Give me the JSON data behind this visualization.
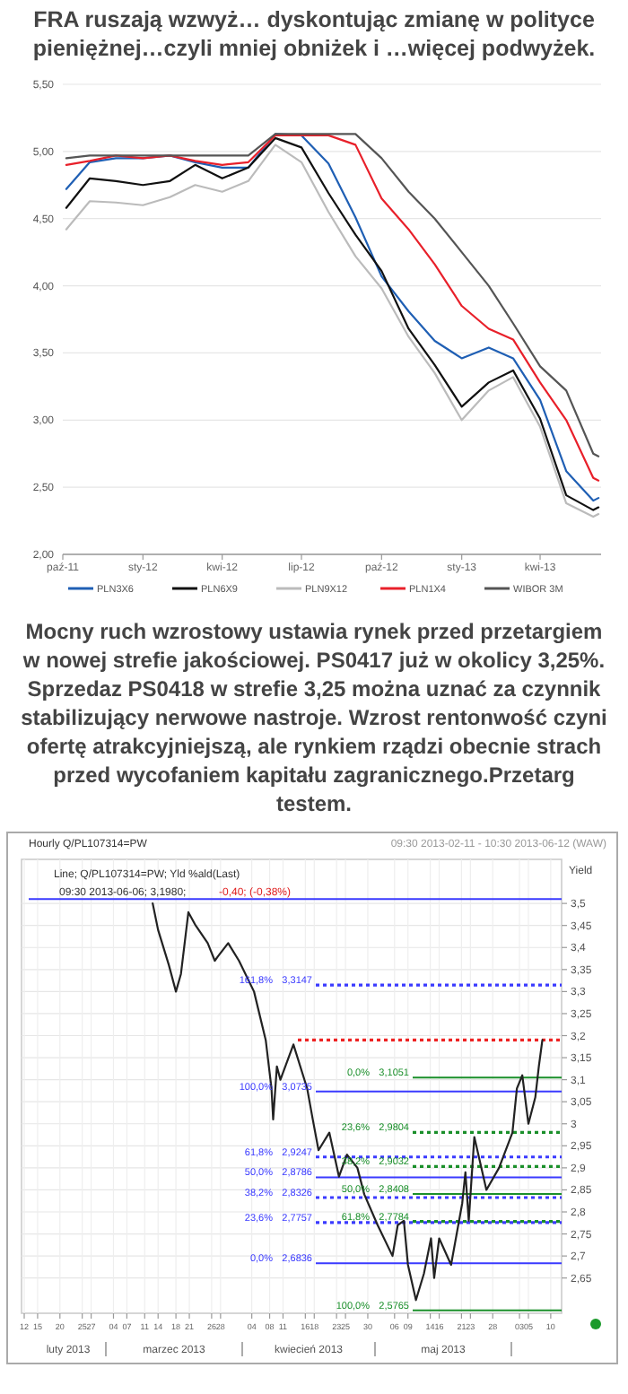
{
  "chart_data": [
    {
      "type": "line",
      "title": "FRA ruszają wzwyż… dyskontując zmianę w polityce pieniężnej…czyli mniej obniżek i …więcej podwyżek.",
      "x": [
        "2011-10-05",
        "2011-11-01",
        "2011-12-01",
        "2012-01-01",
        "2012-02-01",
        "2012-03-01",
        "2012-04-01",
        "2012-05-01",
        "2012-06-01",
        "2012-07-01",
        "2012-08-01",
        "2012-09-01",
        "2012-10-01",
        "2012-11-01",
        "2012-12-01",
        "2013-01-01",
        "2013-02-01",
        "2013-03-01",
        "2013-04-01",
        "2013-05-01",
        "2013-06-01",
        "2013-06-07"
      ],
      "series": [
        {
          "name": "PLN3X6",
          "color": "#1f5fb4",
          "values": [
            4.72,
            4.92,
            4.95,
            4.95,
            4.97,
            4.92,
            4.88,
            4.88,
            5.13,
            5.12,
            4.91,
            4.51,
            4.07,
            3.81,
            3.59,
            3.46,
            3.54,
            3.46,
            3.15,
            2.62,
            2.4,
            2.42
          ]
        },
        {
          "name": "PLN6X9",
          "color": "#111111",
          "values": [
            4.58,
            4.8,
            4.78,
            4.75,
            4.78,
            4.9,
            4.8,
            4.88,
            5.1,
            5.03,
            4.69,
            4.38,
            4.11,
            3.68,
            3.41,
            3.1,
            3.28,
            3.37,
            3.01,
            2.44,
            2.33,
            2.35
          ]
        },
        {
          "name": "PLN9X12",
          "color": "#bbbbbb",
          "values": [
            4.42,
            4.63,
            4.62,
            4.6,
            4.66,
            4.75,
            4.7,
            4.78,
            5.05,
            4.92,
            4.55,
            4.22,
            3.98,
            3.62,
            3.35,
            3.0,
            3.22,
            3.32,
            2.95,
            2.38,
            2.28,
            2.3
          ]
        },
        {
          "name": "PLN1X4",
          "color": "#e8202a",
          "values": [
            4.9,
            4.93,
            4.97,
            4.95,
            4.97,
            4.93,
            4.9,
            4.92,
            5.12,
            5.12,
            5.12,
            5.05,
            4.65,
            4.42,
            4.16,
            3.85,
            3.68,
            3.6,
            3.28,
            3.0,
            2.57,
            2.55
          ]
        },
        {
          "name": "WIBOR 3M",
          "color": "#555555",
          "values": [
            4.95,
            4.97,
            4.97,
            4.97,
            4.97,
            4.97,
            4.97,
            4.97,
            5.13,
            5.13,
            5.13,
            5.13,
            4.95,
            4.7,
            4.5,
            4.25,
            4.0,
            3.72,
            3.4,
            3.22,
            2.75,
            2.73
          ]
        }
      ],
      "xlim": [
        "2011-10-01",
        "2013-06-10"
      ],
      "xticks": [
        {
          "value": "2011-10-01",
          "label": "paź-11"
        },
        {
          "value": "2012-01-01",
          "label": "sty-12"
        },
        {
          "value": "2012-04-01",
          "label": "kwi-12"
        },
        {
          "value": "2012-07-01",
          "label": "lip-12"
        },
        {
          "value": "2012-10-01",
          "label": "paź-12"
        },
        {
          "value": "2013-01-01",
          "label": "sty-13"
        },
        {
          "value": "2013-04-01",
          "label": "kwi-13"
        }
      ],
      "ylim": [
        2,
        5.5
      ],
      "yticks": [
        {
          "value": 2,
          "label": "2,00"
        },
        {
          "value": 2.5,
          "label": "2,50"
        },
        {
          "value": 3,
          "label": "3,00"
        },
        {
          "value": 3.5,
          "label": "3,50"
        },
        {
          "value": 4,
          "label": "4,00"
        },
        {
          "value": 4.5,
          "label": "4,50"
        },
        {
          "value": 5,
          "label": "5,00"
        },
        {
          "value": 5.5,
          "label": "5,50"
        }
      ],
      "grid": "y",
      "legend": "bottom"
    },
    {
      "type": "other",
      "title": "Mocny ruch wzrostowy ustawia rynek przed przetargiem w nowej strefie jakościowej. PS0417 już w okolicy 3,25%.  Sprzedaz PS0418 w strefie 3,25 można uznać za czynnik stabilizujący nerwowe nastroje. Wzrost rentonwość czyni ofertę atrakcyjniejszą, ale rynkiem rządzi obecnie strach przed wycofaniem kapitału zagranicznego.Przetarg testem."
    },
    {
      "type": "line",
      "ylabel": "Yield",
      "series": [
        {
          "color": "#222222",
          "x": [
            "2013-03-12T19:00",
            "2013-03-14T00:00",
            "2013-03-16T10:00",
            "2013-03-18T00:00",
            "2013-03-19T03:00",
            "2013-03-20T19:00",
            "2013-03-22T10:00",
            "2013-03-25T03:00",
            "2013-03-26T17:00",
            "2013-03-27T10:00",
            "2013-03-29T17:00",
            "2013-04-01T03:00",
            "2013-04-04T12:00",
            "2013-04-07T03:00",
            "2013-04-08T10:00",
            "2013-04-08T19:00",
            "2013-04-09T15:00",
            "2013-04-10T10:00",
            "2013-04-13T08:00",
            "2013-04-16T10:00",
            "2013-04-17T16:00",
            "2013-04-18T23:00",
            "2013-04-21T09:00",
            "2013-04-23T13:00",
            "2013-04-25T08:00",
            "2013-04-27T16:00",
            "2013-04-29T05:00",
            "2013-05-02T05:00",
            "2013-05-05T13:00",
            "2013-05-06T17:00",
            "2013-05-08T02:00",
            "2013-05-09T00:00",
            "2013-05-10T19:00",
            "2013-05-12T14:00",
            "2013-05-14T04:00",
            "2013-05-14T21:00",
            "2013-05-16T00:00",
            "2013-05-18T16:00",
            "2013-05-21T04:00",
            "2013-05-21T21:00",
            "2013-05-22T15:00",
            "2013-05-23T21:00",
            "2013-05-26T14:00",
            "2013-05-29T10:00",
            "2013-06-01T10:00",
            "2013-06-02T10:00",
            "2013-06-03T15:00",
            "2013-06-05T00:00",
            "2013-06-06T13:00",
            "2013-06-07T08:00",
            "2013-06-08T03:00"
          ],
          "values": [
            3.5,
            3.44,
            3.36,
            3.3,
            3.34,
            3.48,
            3.45,
            3.41,
            3.37,
            3.38,
            3.41,
            3.37,
            3.3,
            3.19,
            3.08,
            3.01,
            3.13,
            3.1,
            3.18,
            3.08,
            3.01,
            2.94,
            2.98,
            2.88,
            2.93,
            2.9,
            2.84,
            2.77,
            2.7,
            2.77,
            2.78,
            2.68,
            2.6,
            2.66,
            2.74,
            2.65,
            2.74,
            2.68,
            2.82,
            2.89,
            2.78,
            2.97,
            2.85,
            2.9,
            2.98,
            3.08,
            3.11,
            3.0,
            3.06,
            3.13,
            3.19
          ]
        }
      ],
      "xlim": [
        "2013-02-11T09:30",
        "2013-06-12T10:30"
      ],
      "xticks": [
        {
          "value": "2013-02-12",
          "label": "12"
        },
        {
          "value": "2013-02-15",
          "label": "15"
        },
        {
          "value": "2013-02-20",
          "label": "20"
        },
        {
          "value": "2013-02-25",
          "label": "25"
        },
        {
          "value": "2013-02-27",
          "label": "27"
        },
        {
          "value": "2013-03-04",
          "label": "04"
        },
        {
          "value": "2013-03-07",
          "label": "07"
        },
        {
          "value": "2013-03-11",
          "label": "11"
        },
        {
          "value": "2013-03-14",
          "label": "14"
        },
        {
          "value": "2013-03-18",
          "label": "18"
        },
        {
          "value": "2013-03-21",
          "label": "21"
        },
        {
          "value": "2013-03-26",
          "label": "26"
        },
        {
          "value": "2013-03-28",
          "label": "28"
        },
        {
          "value": "2013-04-04",
          "label": "04"
        },
        {
          "value": "2013-04-08",
          "label": "08"
        },
        {
          "value": "2013-04-11",
          "label": "11"
        },
        {
          "value": "2013-04-16",
          "label": "16"
        },
        {
          "value": "2013-04-18",
          "label": "18"
        },
        {
          "value": "2013-04-23",
          "label": "23"
        },
        {
          "value": "2013-04-25",
          "label": "25"
        },
        {
          "value": "2013-04-30",
          "label": "30"
        },
        {
          "value": "2013-05-06",
          "label": "06"
        },
        {
          "value": "2013-05-09",
          "label": "09"
        },
        {
          "value": "2013-05-14",
          "label": "14"
        },
        {
          "value": "2013-05-16",
          "label": "16"
        },
        {
          "value": "2013-05-21",
          "label": "21"
        },
        {
          "value": "2013-05-23",
          "label": "23"
        },
        {
          "value": "2013-05-28",
          "label": "28"
        },
        {
          "value": "2013-06-03",
          "label": "03"
        },
        {
          "value": "2013-06-05",
          "label": "05"
        },
        {
          "value": "2013-06-10",
          "label": "10"
        }
      ],
      "ylim": [
        2.57,
        3.6
      ],
      "yticks": [
        {
          "value": 2.65,
          "label": "2,65"
        },
        {
          "value": 2.7,
          "label": "2,7"
        },
        {
          "value": 2.75,
          "label": "2,75"
        },
        {
          "value": 2.8,
          "label": "2,8"
        },
        {
          "value": 2.85,
          "label": "2,85"
        },
        {
          "value": 2.9,
          "label": "2,9"
        },
        {
          "value": 2.95,
          "label": "2,95"
        },
        {
          "value": 3,
          "label": "3"
        },
        {
          "value": 3.05,
          "label": "3,05"
        },
        {
          "value": 3.1,
          "label": "3,1"
        },
        {
          "value": 3.15,
          "label": "3,15"
        },
        {
          "value": 3.2,
          "label": "3,2"
        },
        {
          "value": 3.25,
          "label": "3,25"
        },
        {
          "value": 3.3,
          "label": "3,3"
        },
        {
          "value": 3.35,
          "label": "3,35"
        },
        {
          "value": 3.4,
          "label": "3,4"
        },
        {
          "value": 3.45,
          "label": "3,45"
        },
        {
          "value": 3.5,
          "label": "3,5"
        }
      ],
      "grid": true,
      "ref_lines": [
        {
          "axis": "y",
          "value": 3.51,
          "color": "#3a3aff",
          "line_style": "solid"
        },
        {
          "axis": "y",
          "value": 3.3147,
          "label": "3,3147",
          "color": "#3a3aff",
          "line_style": "dotted"
        },
        {
          "axis": "y",
          "value": 3.19,
          "color": "#ee2222",
          "line_style": "dotted"
        },
        {
          "axis": "y",
          "value": 3.1051,
          "label": "3,1051",
          "color": "#1a8f2a",
          "line_style": "solid"
        },
        {
          "axis": "y",
          "value": 3.0735,
          "label": "3,0735",
          "color": "#3a3aff",
          "line_style": "solid"
        },
        {
          "axis": "y",
          "value": 2.9804,
          "label": "2,9804",
          "color": "#1a8f2a",
          "line_style": "dotted"
        },
        {
          "axis": "y",
          "value": 2.9247,
          "label": "2,9247",
          "color": "#3a3aff",
          "line_style": "dotted"
        },
        {
          "axis": "y",
          "value": 2.9032,
          "label": "2,9032",
          "color": "#1a8f2a",
          "line_style": "dotted"
        },
        {
          "axis": "y",
          "value": 2.8786,
          "label": "2,8786",
          "color": "#3a3aff",
          "line_style": "solid"
        },
        {
          "axis": "y",
          "value": 2.8408,
          "label": "2,8408",
          "color": "#1a8f2a",
          "line_style": "solid"
        },
        {
          "axis": "y",
          "value": 2.8326,
          "label": "2,8326",
          "color": "#3a3aff",
          "line_style": "dotted"
        },
        {
          "axis": "y",
          "value": 2.7784,
          "label": "2,7784",
          "color": "#1a8f2a",
          "line_style": "dotted"
        },
        {
          "axis": "y",
          "value": 2.7757,
          "label": "2,7757",
          "color": "#3a3aff",
          "line_style": "dotted"
        },
        {
          "axis": "y",
          "value": 2.6836,
          "label": "2,6836",
          "color": "#3a3aff",
          "line_style": "solid"
        },
        {
          "axis": "y",
          "value": 2.5765,
          "label": "2,5765",
          "color": "#1a8f2a",
          "line_style": "solid"
        }
      ],
      "annotations": [
        "Hourly Q/PL107314=PW",
        "09:30 2013-02-11 - 10:30 2013-06-12 (WAW)",
        "Line; Q/PL107314=PW; Yld %ald(Last)",
        "09:30 2013-06-06; 3,1980;",
        "-0,40; (-0,38%)",
        "luty 2013",
        "marzec 2013",
        "kwiecień 2013",
        "maj 2013",
        "161,8%",
        "0,0%",
        "100,0%",
        "23,6%",
        "61,8%",
        "38,2%",
        "50,0%",
        "50,0%",
        "38,2%",
        "61,8%",
        "23,6%",
        "0,0%",
        "100,0%"
      ]
    }
  ]
}
